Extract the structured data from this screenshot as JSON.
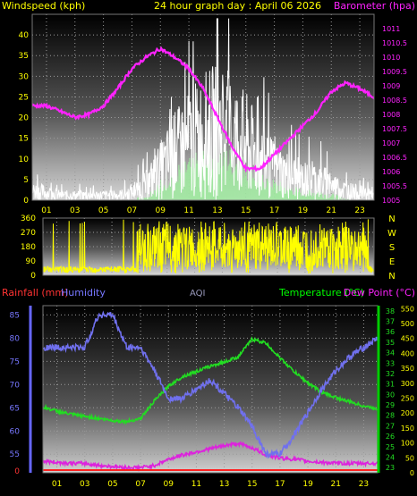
{
  "header": {
    "wind_label": "Windspeed (kph)",
    "title": "24 hour graph day : April 06 2026",
    "baro_label": "Barometer (hpa)"
  },
  "colors": {
    "wind": "#ffffff",
    "gust_fill": "#9ee89e",
    "barometer": "#ff22ff",
    "direction": "#ffff00",
    "temperature": "#22dd22",
    "dewpoint": "#dd22dd",
    "humidity": "#7070ee",
    "rainfall": "#ff2222",
    "label_yellow": "#ffff00",
    "label_green": "#00ff00",
    "label_blue": "#6666ff",
    "label_red": "#ff3333"
  },
  "chart_data": [
    {
      "name": "wind_barometer",
      "type": "line",
      "x_ticks": [
        "01",
        "03",
        "05",
        "07",
        "09",
        "11",
        "13",
        "15",
        "17",
        "19",
        "21",
        "23"
      ],
      "wind_axis": {
        "ticks": [
          "0",
          "5",
          "10",
          "15",
          "20",
          "25",
          "30",
          "35",
          "40"
        ],
        "range": [
          0,
          45
        ]
      },
      "baro_axis": {
        "ticks": [
          "1005",
          "1005.5",
          "1006",
          "1006.5",
          "1007",
          "1007.5",
          "1008",
          "1008.5",
          "1009",
          "1009.5",
          "1010",
          "1010.5",
          "1011"
        ],
        "range": [
          1005,
          1011.5
        ]
      },
      "barometer": {
        "hours": [
          0,
          1,
          2,
          3,
          4,
          5,
          6,
          7,
          8,
          9,
          10,
          11,
          12,
          13,
          14,
          15,
          16,
          17,
          18,
          19,
          20,
          21,
          22,
          23,
          24
        ],
        "values": [
          1008.3,
          1008.3,
          1008.1,
          1007.9,
          1008.0,
          1008.3,
          1008.9,
          1009.6,
          1010.0,
          1010.3,
          1010.0,
          1009.6,
          1008.9,
          1007.9,
          1006.9,
          1006.1,
          1006.1,
          1006.6,
          1007.1,
          1007.6,
          1008.1,
          1008.8,
          1009.1,
          1008.9,
          1008.6
        ]
      },
      "wind_profile": {
        "hours": [
          0,
          1,
          2,
          3,
          4,
          5,
          6,
          7,
          8,
          9,
          10,
          11,
          12,
          13,
          14,
          15,
          16,
          17,
          18,
          19,
          20,
          21,
          22,
          23,
          24
        ],
        "values": [
          2,
          1.5,
          1,
          1,
          1,
          1,
          1,
          1.5,
          3,
          6,
          9,
          11,
          13,
          14,
          13,
          11,
          8,
          6,
          5,
          4,
          4,
          3,
          2,
          1.5,
          1
        ]
      }
    },
    {
      "name": "wind_direction",
      "type": "line",
      "y_ticks": [
        "360",
        "270",
        "180",
        "90",
        "0"
      ],
      "compass": [
        "N",
        "W",
        "S",
        "E",
        "N"
      ],
      "range": [
        0,
        360
      ],
      "overnight_mean_deg": 40,
      "daytime_mean_deg": 160
    },
    {
      "name": "temperature_humidity",
      "type": "line",
      "legend": {
        "rainfall": "Rainfall (mm)",
        "humidity": "Humidity",
        "aqi": "AQI",
        "temperature": "Temperature (°C)",
        "dewpoint": "Dew Point (°C)"
      },
      "x_ticks": [
        "01",
        "03",
        "05",
        "07",
        "09",
        "11",
        "13",
        "15",
        "17",
        "19",
        "21",
        "23"
      ],
      "humidity_axis": {
        "ticks": [
          "55",
          "60",
          "65",
          "70",
          "75",
          "80",
          "85"
        ],
        "range": [
          51,
          87
        ]
      },
      "temp_axis": {
        "ticks": [
          "23",
          "24",
          "25",
          "26",
          "27",
          "28",
          "29",
          "30",
          "31",
          "32",
          "33",
          "34",
          "35",
          "36",
          "37",
          "38"
        ],
        "range": [
          22.5,
          38.5
        ]
      },
      "aqi_axis": {
        "ticks": [
          "0",
          "50",
          "100",
          "150",
          "200",
          "250",
          "300",
          "350",
          "400",
          "450",
          "500",
          "550"
        ],
        "range": [
          0,
          560
        ]
      },
      "rain_tick": "0",
      "temperature": {
        "hours": [
          0,
          1,
          2,
          3,
          4,
          5,
          6,
          7,
          8,
          9,
          10,
          11,
          12,
          13,
          14,
          15,
          16,
          17,
          18,
          19,
          20,
          21,
          22,
          23,
          24
        ],
        "values": [
          28.8,
          28.4,
          28.1,
          27.9,
          27.7,
          27.5,
          27.4,
          27.7,
          29.4,
          30.8,
          31.7,
          32.2,
          32.7,
          33.1,
          33.6,
          35.3,
          34.9,
          33.5,
          32.2,
          31.1,
          30.2,
          29.7,
          29.3,
          28.9,
          28.6
        ]
      },
      "dewpoint": {
        "hours": [
          0,
          1,
          2,
          3,
          4,
          5,
          6,
          7,
          8,
          9,
          10,
          11,
          12,
          13,
          14,
          15,
          16,
          17,
          18,
          19,
          20,
          21,
          22,
          23,
          24
        ],
        "values": [
          23.6,
          23.5,
          23.4,
          23.4,
          23.2,
          23.1,
          23.0,
          23.0,
          23.2,
          23.8,
          24.2,
          24.5,
          24.8,
          25.1,
          25.3,
          24.9,
          24.2,
          23.9,
          23.8,
          23.6,
          23.5,
          23.4,
          23.4,
          23.4,
          23.4
        ]
      },
      "humidity": {
        "hours": [
          0,
          1,
          2,
          3,
          4,
          5,
          6,
          7,
          8,
          9,
          10,
          11,
          12,
          13,
          14,
          15,
          16,
          17,
          18,
          19,
          20,
          21,
          22,
          23,
          24
        ],
        "values": [
          78,
          78,
          78,
          78,
          85,
          85,
          78,
          78,
          73,
          67,
          67,
          69,
          71,
          68,
          65,
          61,
          55,
          55,
          59,
          64,
          69,
          73,
          76,
          78,
          80
        ]
      },
      "rainfall": {
        "values": [
          0
        ]
      }
    }
  ]
}
